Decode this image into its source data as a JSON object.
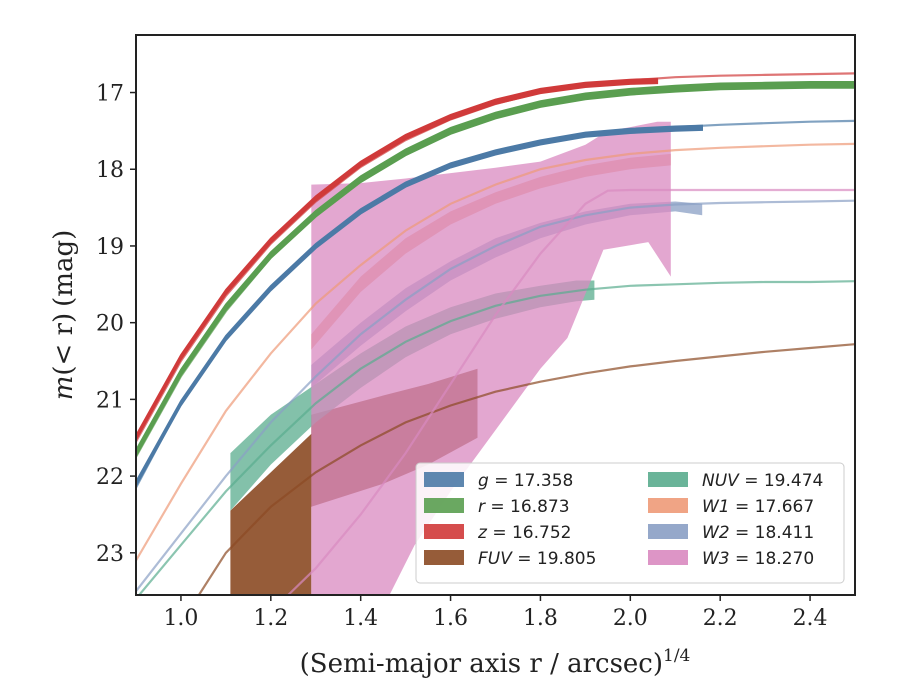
{
  "chart_data": {
    "type": "line",
    "xlabel": "(Semi-major axis r / arcsec)",
    "xlabel_power": "1/4",
    "ylabel_m": "m",
    "ylabel_paren": "(< r)",
    "ylabel_unit": "(mag)",
    "xlim": [
      0.9,
      2.5
    ],
    "ylim": [
      23.55,
      16.25
    ],
    "y_inverted": true,
    "x_ticks": [
      1.0,
      1.2,
      1.4,
      1.6,
      1.8,
      2.0,
      2.2,
      2.4
    ],
    "x_tick_labels": [
      "1.0",
      "1.2",
      "1.4",
      "1.6",
      "1.8",
      "2.0",
      "2.2",
      "2.4"
    ],
    "y_ticks": [
      17,
      18,
      19,
      20,
      21,
      22,
      23
    ],
    "y_tick_labels": [
      "17",
      "18",
      "19",
      "20",
      "21",
      "22",
      "23"
    ],
    "legend_position": "lower-right",
    "series": [
      {
        "name": "g",
        "value": "17.358",
        "color": "#4c7aa6",
        "model": {
          "x": [
            0.9,
            1.0,
            1.1,
            1.2,
            1.3,
            1.4,
            1.5,
            1.6,
            1.7,
            1.8,
            1.9,
            2.0,
            2.1,
            2.2,
            2.3,
            2.4,
            2.5
          ],
          "y": [
            22.15,
            21.05,
            20.2,
            19.55,
            19.0,
            18.55,
            18.2,
            17.95,
            17.78,
            17.65,
            17.55,
            17.49,
            17.45,
            17.42,
            17.4,
            17.38,
            17.37
          ]
        },
        "data": {
          "x": [
            0.9,
            1.0,
            1.1,
            1.2,
            1.3,
            1.4,
            1.5,
            1.6,
            1.7,
            1.8,
            1.9,
            2.0,
            2.1,
            2.16
          ],
          "y": [
            22.1,
            21.05,
            20.2,
            19.55,
            19.0,
            18.55,
            18.2,
            17.95,
            17.78,
            17.65,
            17.55,
            17.5,
            17.47,
            17.46
          ],
          "width": 0.03
        }
      },
      {
        "name": "r",
        "value": "16.873",
        "color": "#5a9e50",
        "model": {
          "x": [
            0.9,
            1.0,
            1.1,
            1.2,
            1.3,
            1.4,
            1.5,
            1.6,
            1.7,
            1.8,
            1.9,
            2.0,
            2.1,
            2.2,
            2.3,
            2.4,
            2.5
          ],
          "y": [
            21.75,
            20.7,
            19.85,
            19.15,
            18.6,
            18.15,
            17.8,
            17.52,
            17.32,
            17.17,
            17.07,
            17.0,
            16.96,
            16.94,
            16.93,
            16.93,
            16.93
          ]
        },
        "data": {
          "x": [
            0.9,
            1.0,
            1.1,
            1.2,
            1.3,
            1.4,
            1.5,
            1.6,
            1.7,
            1.8,
            1.9,
            2.0,
            2.1,
            2.2,
            2.3,
            2.4,
            2.5
          ],
          "y": [
            21.7,
            20.65,
            19.8,
            19.12,
            18.58,
            18.13,
            17.78,
            17.5,
            17.3,
            17.15,
            17.05,
            16.99,
            16.95,
            16.92,
            16.91,
            16.9,
            16.9
          ],
          "width": 0.04
        }
      },
      {
        "name": "z",
        "value": "16.752",
        "color": "#d03a3a",
        "model": {
          "x": [
            0.9,
            1.0,
            1.1,
            1.2,
            1.3,
            1.4,
            1.5,
            1.6,
            1.7,
            1.8,
            1.9,
            2.0,
            2.1,
            2.2,
            2.3,
            2.4,
            2.5
          ],
          "y": [
            21.55,
            20.5,
            19.65,
            18.97,
            18.42,
            17.97,
            17.62,
            17.35,
            17.15,
            17.0,
            16.9,
            16.84,
            16.8,
            16.78,
            16.77,
            16.76,
            16.75
          ]
        },
        "data": {
          "x": [
            0.9,
            1.0,
            1.1,
            1.2,
            1.3,
            1.4,
            1.5,
            1.6,
            1.7,
            1.8,
            1.9,
            2.0,
            2.06
          ],
          "y": [
            21.5,
            20.45,
            19.6,
            18.93,
            18.38,
            17.93,
            17.58,
            17.32,
            17.12,
            16.98,
            16.9,
            16.86,
            16.85
          ],
          "width": 0.03
        }
      },
      {
        "name": "FUV",
        "value": "19.805",
        "color": "#8b4a24",
        "model": {
          "x": [
            1.04,
            1.1,
            1.2,
            1.3,
            1.4,
            1.5,
            1.6,
            1.7,
            1.8,
            1.9,
            2.0,
            2.1,
            2.2,
            2.3,
            2.4,
            2.5
          ],
          "y": [
            23.55,
            23.0,
            22.4,
            21.95,
            21.6,
            21.3,
            21.08,
            20.9,
            20.77,
            20.66,
            20.57,
            20.5,
            20.44,
            20.38,
            20.33,
            20.28
          ]
        },
        "band": {
          "x": [
            1.11,
            1.29,
            1.29,
            1.45,
            1.55,
            1.66
          ],
          "y_top": [
            22.45,
            21.45,
            21.2,
            20.95,
            20.8,
            20.6
          ],
          "y_bottom": [
            23.6,
            23.6,
            22.4,
            22.1,
            21.85,
            21.5
          ]
        }
      },
      {
        "name": "NUV",
        "value": "19.474",
        "color": "#5aac8e",
        "model": {
          "x": [
            0.9,
            1.0,
            1.1,
            1.2,
            1.3,
            1.4,
            1.5,
            1.6,
            1.7,
            1.8,
            1.9,
            2.0,
            2.1,
            2.2,
            2.3,
            2.4,
            2.5
          ],
          "y": [
            23.6,
            22.9,
            22.2,
            21.6,
            21.05,
            20.6,
            20.25,
            19.98,
            19.78,
            19.65,
            19.57,
            19.52,
            19.5,
            19.48,
            19.47,
            19.47,
            19.46
          ]
        },
        "band": {
          "x": [
            1.11,
            1.2,
            1.3,
            1.4,
            1.5,
            1.6,
            1.7,
            1.8,
            1.88,
            1.92
          ],
          "y_top": [
            21.7,
            21.2,
            20.8,
            20.4,
            20.05,
            19.8,
            19.62,
            19.52,
            19.45,
            19.45
          ],
          "y_bottom": [
            22.45,
            21.85,
            21.3,
            20.85,
            20.45,
            20.15,
            19.95,
            19.8,
            19.72,
            19.7
          ]
        }
      },
      {
        "name": "W1",
        "value": "17.667",
        "color": "#ee9a78",
        "model": {
          "x": [
            0.9,
            1.0,
            1.1,
            1.2,
            1.3,
            1.4,
            1.5,
            1.6,
            1.7,
            1.8,
            1.9,
            2.0,
            2.1,
            2.2,
            2.3,
            2.4,
            2.5
          ],
          "y": [
            23.1,
            22.1,
            21.15,
            20.4,
            19.75,
            19.25,
            18.8,
            18.45,
            18.2,
            18.0,
            17.88,
            17.8,
            17.75,
            17.72,
            17.7,
            17.68,
            17.67
          ]
        },
        "band": {
          "x": [
            1.29,
            1.4,
            1.5,
            1.6,
            1.7,
            1.8,
            1.9,
            2.0,
            2.09
          ],
          "y_top": [
            20.15,
            19.4,
            18.9,
            18.55,
            18.3,
            18.1,
            17.95,
            17.85,
            17.8
          ],
          "y_bottom": [
            20.35,
            19.6,
            19.1,
            18.72,
            18.45,
            18.25,
            18.1,
            18.0,
            17.95
          ]
        }
      },
      {
        "name": "W2",
        "value": "18.411",
        "color": "#8a9fc4",
        "model": {
          "x": [
            0.9,
            1.0,
            1.1,
            1.2,
            1.3,
            1.4,
            1.5,
            1.6,
            1.7,
            1.8,
            1.9,
            2.0,
            2.1,
            2.2,
            2.3,
            2.4,
            2.5
          ],
          "y": [
            23.5,
            22.75,
            22.0,
            21.3,
            20.7,
            20.15,
            19.7,
            19.3,
            19.0,
            18.75,
            18.6,
            18.5,
            18.46,
            18.44,
            18.43,
            18.42,
            18.41
          ]
        },
        "band": {
          "x": [
            1.29,
            1.4,
            1.5,
            1.6,
            1.7,
            1.8,
            1.9,
            2.0,
            2.1,
            2.16
          ],
          "y_top": [
            20.55,
            20.0,
            19.55,
            19.2,
            18.9,
            18.7,
            18.55,
            18.45,
            18.42,
            18.45
          ],
          "y_bottom": [
            20.85,
            20.3,
            19.85,
            19.45,
            19.15,
            18.9,
            18.72,
            18.6,
            18.55,
            18.6
          ]
        }
      },
      {
        "name": "W3",
        "value": "18.270",
        "color": "#d98ac0",
        "model": {
          "x": [
            1.23,
            1.3,
            1.4,
            1.5,
            1.6,
            1.7,
            1.8,
            1.9,
            1.95,
            2.0,
            2.1,
            2.2,
            2.3,
            2.4,
            2.5
          ],
          "y": [
            23.6,
            23.2,
            22.5,
            21.7,
            20.8,
            19.9,
            19.1,
            18.45,
            18.28,
            18.27,
            18.27,
            18.27,
            18.27,
            18.27,
            18.27
          ]
        },
        "band": {
          "x": [
            1.29,
            1.4,
            1.5,
            1.6,
            1.7,
            1.8,
            1.9,
            1.95,
            2.0,
            2.06,
            2.09,
            2.09,
            2.04,
            1.94,
            1.86,
            1.8,
            1.7,
            1.6,
            1.52,
            1.46,
            1.29
          ],
          "y": [
            18.2,
            18.18,
            18.12,
            18.05,
            17.98,
            17.9,
            17.68,
            17.5,
            17.45,
            17.38,
            17.38,
            19.4,
            18.95,
            19.05,
            20.2,
            20.6,
            21.4,
            22.2,
            22.9,
            23.6,
            23.6
          ]
        }
      }
    ]
  }
}
